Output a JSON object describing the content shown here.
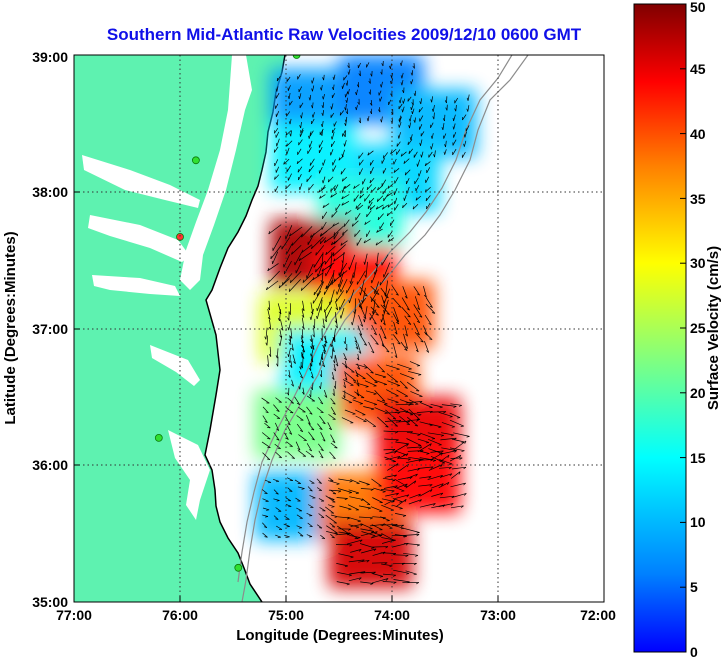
{
  "chart_data": {
    "type": "heatmap",
    "title": "Southern Mid-Atlantic Raw Velocities 2009/12/10 0600 GMT",
    "xlabel": "Longitude (Degrees:Minutes)",
    "ylabel": "Latitude (Degrees:Minutes)",
    "colorbar_label": "Surface Velocity (cm/s)",
    "x_ticks": [
      "77:00",
      "76:00",
      "75:00",
      "74:00",
      "73:00",
      "72:00"
    ],
    "y_ticks": [
      "39:00",
      "38:00",
      "37:00",
      "36:00",
      "35:00"
    ],
    "colorbar_ticks": [
      "50",
      "45",
      "40",
      "35",
      "30",
      "25",
      "20",
      "15",
      "10",
      "5",
      "0"
    ],
    "xlim": [
      -77,
      -72
    ],
    "ylim": [
      35,
      39
    ],
    "clim": [
      0,
      50
    ],
    "grid": true,
    "colormap": "jet",
    "colors": {
      "land": "#5ef2b0",
      "water": "#ffffff",
      "coastline": "#000000",
      "bathymetry": "#8c8c8c",
      "arrow": "#000000",
      "title": "#1010e8"
    },
    "stations": [
      {
        "lon": -74.9,
        "lat": 39.0,
        "status": "ok"
      },
      {
        "lon": -75.85,
        "lat": 38.23,
        "status": "ok"
      },
      {
        "lon": -76.0,
        "lat": 37.67,
        "status": "error"
      },
      {
        "lon": -76.2,
        "lat": 36.2,
        "status": "ok"
      },
      {
        "lon": -75.45,
        "lat": 35.25,
        "status": "ok"
      }
    ],
    "velocity_zones": [
      {
        "lon": -74.75,
        "lat": 38.65,
        "speed": 8,
        "dir": 200
      },
      {
        "lon": -74.1,
        "lat": 38.75,
        "speed": 6,
        "dir": 190
      },
      {
        "lon": -73.6,
        "lat": 38.5,
        "speed": 10,
        "dir": 200
      },
      {
        "lon": -74.75,
        "lat": 38.25,
        "speed": 14,
        "dir": 210
      },
      {
        "lon": -73.95,
        "lat": 38.1,
        "speed": 12,
        "dir": 215
      },
      {
        "lon": -74.3,
        "lat": 37.85,
        "speed": 17,
        "dir": 225
      },
      {
        "lon": -74.75,
        "lat": 37.55,
        "speed": 48,
        "dir": 220
      },
      {
        "lon": -74.35,
        "lat": 37.35,
        "speed": 44,
        "dir": 200
      },
      {
        "lon": -74.0,
        "lat": 37.1,
        "speed": 40,
        "dir": 150
      },
      {
        "lon": -74.85,
        "lat": 37.0,
        "speed": 28,
        "dir": 180
      },
      {
        "lon": -74.65,
        "lat": 36.75,
        "speed": 14,
        "dir": 170
      },
      {
        "lon": -74.15,
        "lat": 36.55,
        "speed": 40,
        "dir": 120
      },
      {
        "lon": -73.75,
        "lat": 36.25,
        "speed": 45,
        "dir": 100
      },
      {
        "lon": -74.9,
        "lat": 36.3,
        "speed": 22,
        "dir": 140
      },
      {
        "lon": -74.9,
        "lat": 35.7,
        "speed": 10,
        "dir": 120
      },
      {
        "lon": -74.3,
        "lat": 35.7,
        "speed": 38,
        "dir": 110
      },
      {
        "lon": -74.2,
        "lat": 35.35,
        "speed": 46,
        "dir": 90
      },
      {
        "lon": -73.75,
        "lat": 35.9,
        "speed": 44,
        "dir": 70
      }
    ]
  }
}
